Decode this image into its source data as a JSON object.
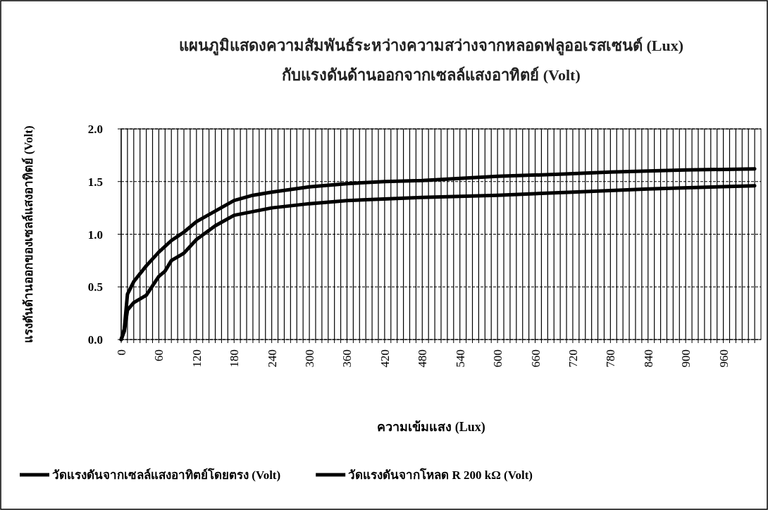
{
  "chart_data": {
    "type": "line",
    "title": "แผนภูมิแสดงความสัมพันธ์ระหว่างความสว่างจากหลอดฟลูออเรสเซนต์ (Lux)\nกับแรงดันด้านออกจากเซลล์แสงอาทิตย์ (Volt)",
    "xlabel": "ความเข้มแสง (Lux)",
    "ylabel": "แรงดันด้านออกของเซลล์แสงอาทิตย์ (Volt)",
    "series": [
      {
        "name": "วัดแรงดันจากเซลล์แสงอาทิตย์โดยตรง (Volt)",
        "color": "#000000",
        "x": [
          0,
          5,
          10,
          20,
          40,
          60,
          80,
          100,
          120,
          150,
          180,
          210,
          240,
          300,
          360,
          420,
          480,
          540,
          600,
          700,
          780,
          900,
          1010
        ],
        "values": [
          0,
          0.1,
          0.43,
          0.55,
          0.7,
          0.83,
          0.94,
          1.02,
          1.12,
          1.22,
          1.32,
          1.37,
          1.4,
          1.45,
          1.48,
          1.5,
          1.51,
          1.53,
          1.55,
          1.57,
          1.59,
          1.61,
          1.62
        ]
      },
      {
        "name": "วัดแรงดันจากโหลด R 200 kΩ (Volt)",
        "color": "#000000",
        "x": [
          0,
          5,
          10,
          20,
          40,
          60,
          70,
          80,
          100,
          120,
          150,
          180,
          240,
          300,
          360,
          480,
          600,
          720,
          840,
          1010
        ],
        "values": [
          0,
          0.08,
          0.28,
          0.35,
          0.42,
          0.6,
          0.65,
          0.75,
          0.82,
          0.95,
          1.08,
          1.18,
          1.25,
          1.29,
          1.32,
          1.35,
          1.37,
          1.4,
          1.43,
          1.46
        ]
      }
    ],
    "xlim": [
      0,
      1020
    ],
    "ylim": [
      0,
      2.0
    ],
    "xticks": [
      0,
      {
        "value": 10,
        "label": null
      },
      {
        "value": 20,
        "label": null
      },
      {
        "value": 30,
        "label": null
      },
      {
        "value": 40,
        "label": null
      },
      {
        "value": 50,
        "label": null
      },
      60,
      {
        "value": 70,
        "label": null
      },
      {
        "value": 80,
        "label": null
      },
      {
        "value": 90,
        "label": null
      },
      {
        "value": 100,
        "label": null
      },
      {
        "value": 110,
        "label": null
      },
      120,
      {
        "value": 130,
        "label": null
      },
      {
        "value": 140,
        "label": null
      },
      {
        "value": 150,
        "label": null
      },
      {
        "value": 160,
        "label": null
      },
      {
        "value": 170,
        "label": null
      },
      180,
      {
        "value": 190,
        "label": null
      },
      {
        "value": 200,
        "label": null
      },
      {
        "value": 210,
        "label": null
      },
      {
        "value": 220,
        "label": null
      },
      {
        "value": 230,
        "label": null
      },
      240,
      {
        "value": 250,
        "label": null
      },
      {
        "value": 260,
        "label": null
      },
      {
        "value": 270,
        "label": null
      },
      {
        "value": 280,
        "label": null
      },
      {
        "value": 290,
        "label": null
      },
      300,
      {
        "value": 310,
        "label": null
      },
      {
        "value": 320,
        "label": null
      },
      {
        "value": 330,
        "label": null
      },
      {
        "value": 340,
        "label": null
      },
      {
        "value": 350,
        "label": null
      },
      360,
      {
        "value": 370,
        "label": null
      },
      {
        "value": 380,
        "label": null
      },
      {
        "value": 390,
        "label": null
      },
      {
        "value": 400,
        "label": null
      },
      {
        "value": 410,
        "label": null
      },
      420,
      {
        "value": 430,
        "label": null
      },
      {
        "value": 440,
        "label": null
      },
      {
        "value": 450,
        "label": null
      },
      {
        "value": 460,
        "label": null
      },
      {
        "value": 470,
        "label": null
      },
      480,
      {
        "value": 490,
        "label": null
      },
      {
        "value": 500,
        "label": null
      },
      {
        "value": 510,
        "label": null
      },
      {
        "value": 520,
        "label": null
      },
      {
        "value": 530,
        "label": null
      },
      540,
      {
        "value": 550,
        "label": null
      },
      {
        "value": 560,
        "label": null
      },
      {
        "value": 570,
        "label": null
      },
      {
        "value": 580,
        "label": null
      },
      {
        "value": 590,
        "label": null
      },
      600,
      {
        "value": 610,
        "label": null
      },
      {
        "value": 620,
        "label": null
      },
      {
        "value": 630,
        "label": null
      },
      {
        "value": 640,
        "label": null
      },
      {
        "value": 650,
        "label": null
      },
      660,
      {
        "value": 670,
        "label": null
      },
      {
        "value": 680,
        "label": null
      },
      {
        "value": 690,
        "label": null
      },
      {
        "value": 700,
        "label": null
      },
      {
        "value": 710,
        "label": null
      },
      720,
      {
        "value": 730,
        "label": null
      },
      {
        "value": 740,
        "label": null
      },
      {
        "value": 750,
        "label": null
      },
      {
        "value": 760,
        "label": null
      },
      {
        "value": 770,
        "label": null
      },
      780,
      {
        "value": 790,
        "label": null
      },
      {
        "value": 800,
        "label": null
      },
      {
        "value": 810,
        "label": null
      },
      {
        "value": 820,
        "label": null
      },
      {
        "value": 830,
        "label": null
      },
      840,
      {
        "value": 850,
        "label": null
      },
      {
        "value": 860,
        "label": null
      },
      {
        "value": 870,
        "label": null
      },
      {
        "value": 880,
        "label": null
      },
      {
        "value": 890,
        "label": null
      },
      900,
      {
        "value": 910,
        "label": null
      },
      {
        "value": 920,
        "label": null
      },
      {
        "value": 930,
        "label": null
      },
      {
        "value": 940,
        "label": null
      },
      {
        "value": 950,
        "label": null
      },
      960,
      {
        "value": 970,
        "label": null
      },
      {
        "value": 980,
        "label": null
      },
      {
        "value": 990,
        "label": null
      },
      {
        "value": 1000,
        "label": null
      },
      {
        "value": 1010,
        "label": null
      }
    ],
    "yticks": [
      {
        "value": 0,
        "label": "0.0"
      },
      0.5,
      {
        "value": 1,
        "label": "1.0"
      },
      1.5,
      {
        "value": 2,
        "label": "2.0"
      }
    ],
    "grid": true,
    "legend": "bottom",
    "marker": "none",
    "line_style": "solid"
  }
}
